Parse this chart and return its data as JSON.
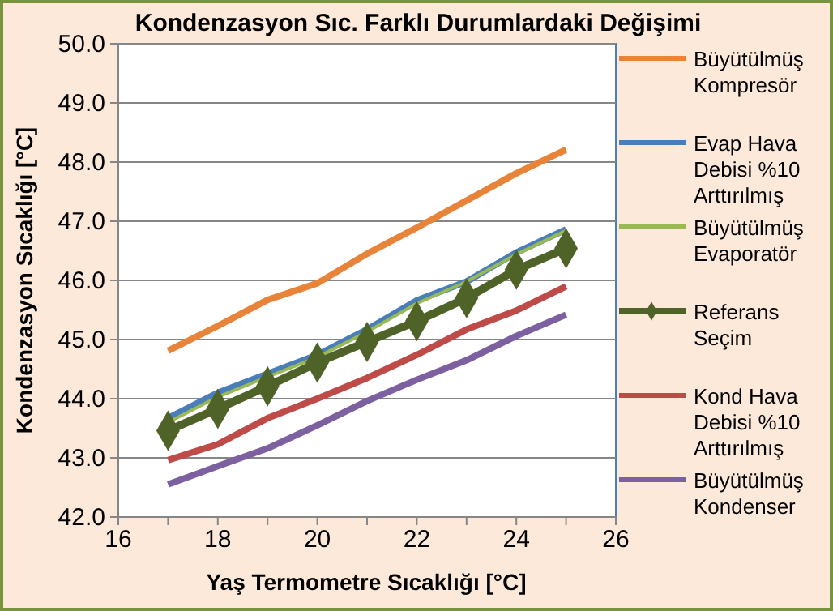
{
  "chart_data": {
    "type": "line",
    "title": "Kondenzasyon Sıc. Farklı Durumlardaki Değişimi",
    "xlabel": "Yaş Termometre Sıcaklığı [°C]",
    "ylabel": "Kondenzasyon Sıcaklığı [°C]",
    "x": [
      17,
      18,
      19,
      20,
      21,
      22,
      23,
      24,
      25
    ],
    "xlim": [
      16,
      26
    ],
    "xticks": [
      16,
      {
        "value": 17,
        "label": null
      },
      18,
      {
        "value": 19,
        "label": null
      },
      20,
      {
        "value": 21,
        "label": null
      },
      22,
      {
        "value": 23,
        "label": null
      },
      24,
      {
        "value": 25,
        "label": null
      },
      26
    ],
    "ylim": [
      42,
      50
    ],
    "yticks": [
      {
        "value": 42,
        "label": "42.0"
      },
      {
        "value": 43,
        "label": "43.0"
      },
      {
        "value": 44,
        "label": "44.0"
      },
      {
        "value": 45,
        "label": "45.0"
      },
      {
        "value": 46,
        "label": "46.0"
      },
      {
        "value": 47,
        "label": "47.0"
      },
      {
        "value": 48,
        "label": "48.0"
      },
      {
        "value": 49,
        "label": "49.0"
      },
      {
        "value": 50,
        "label": "50.0"
      }
    ],
    "grid": "y",
    "legend": "right",
    "series": [
      {
        "name": "Büyütülmüş Kompresör",
        "color": "#e8833a",
        "values": [
          44.81,
          45.23,
          45.67,
          45.95,
          46.45,
          46.89,
          47.35,
          47.81,
          48.21
        ]
      },
      {
        "name": "Evap Hava Debisi %10 Arttırılmış",
        "color": "#4a7ebb",
        "values": [
          43.67,
          44.1,
          44.42,
          44.74,
          45.17,
          45.66,
          45.98,
          46.47,
          46.86
        ]
      },
      {
        "name": "Büyütülmüş Evaporatör",
        "color": "#98b954",
        "values": [
          43.6,
          44.03,
          44.37,
          44.7,
          45.13,
          45.61,
          45.98,
          46.44,
          46.84
        ]
      },
      {
        "name": "Referans Seçim",
        "color": "#4f6228",
        "marker": "diamond",
        "values": [
          43.46,
          43.83,
          44.21,
          44.61,
          44.96,
          45.31,
          45.7,
          46.18,
          46.54
        ]
      },
      {
        "name": "Kond Hava Debisi %10 Arttırılmış",
        "color": "#be4b48",
        "values": [
          42.96,
          43.23,
          43.67,
          44.0,
          44.35,
          44.74,
          45.17,
          45.49,
          45.9
        ]
      },
      {
        "name": "Büyütülmüş Kondenser",
        "color": "#7d60a0",
        "values": [
          42.55,
          42.86,
          43.16,
          43.55,
          43.96,
          44.32,
          44.65,
          45.06,
          45.42
        ]
      }
    ]
  }
}
